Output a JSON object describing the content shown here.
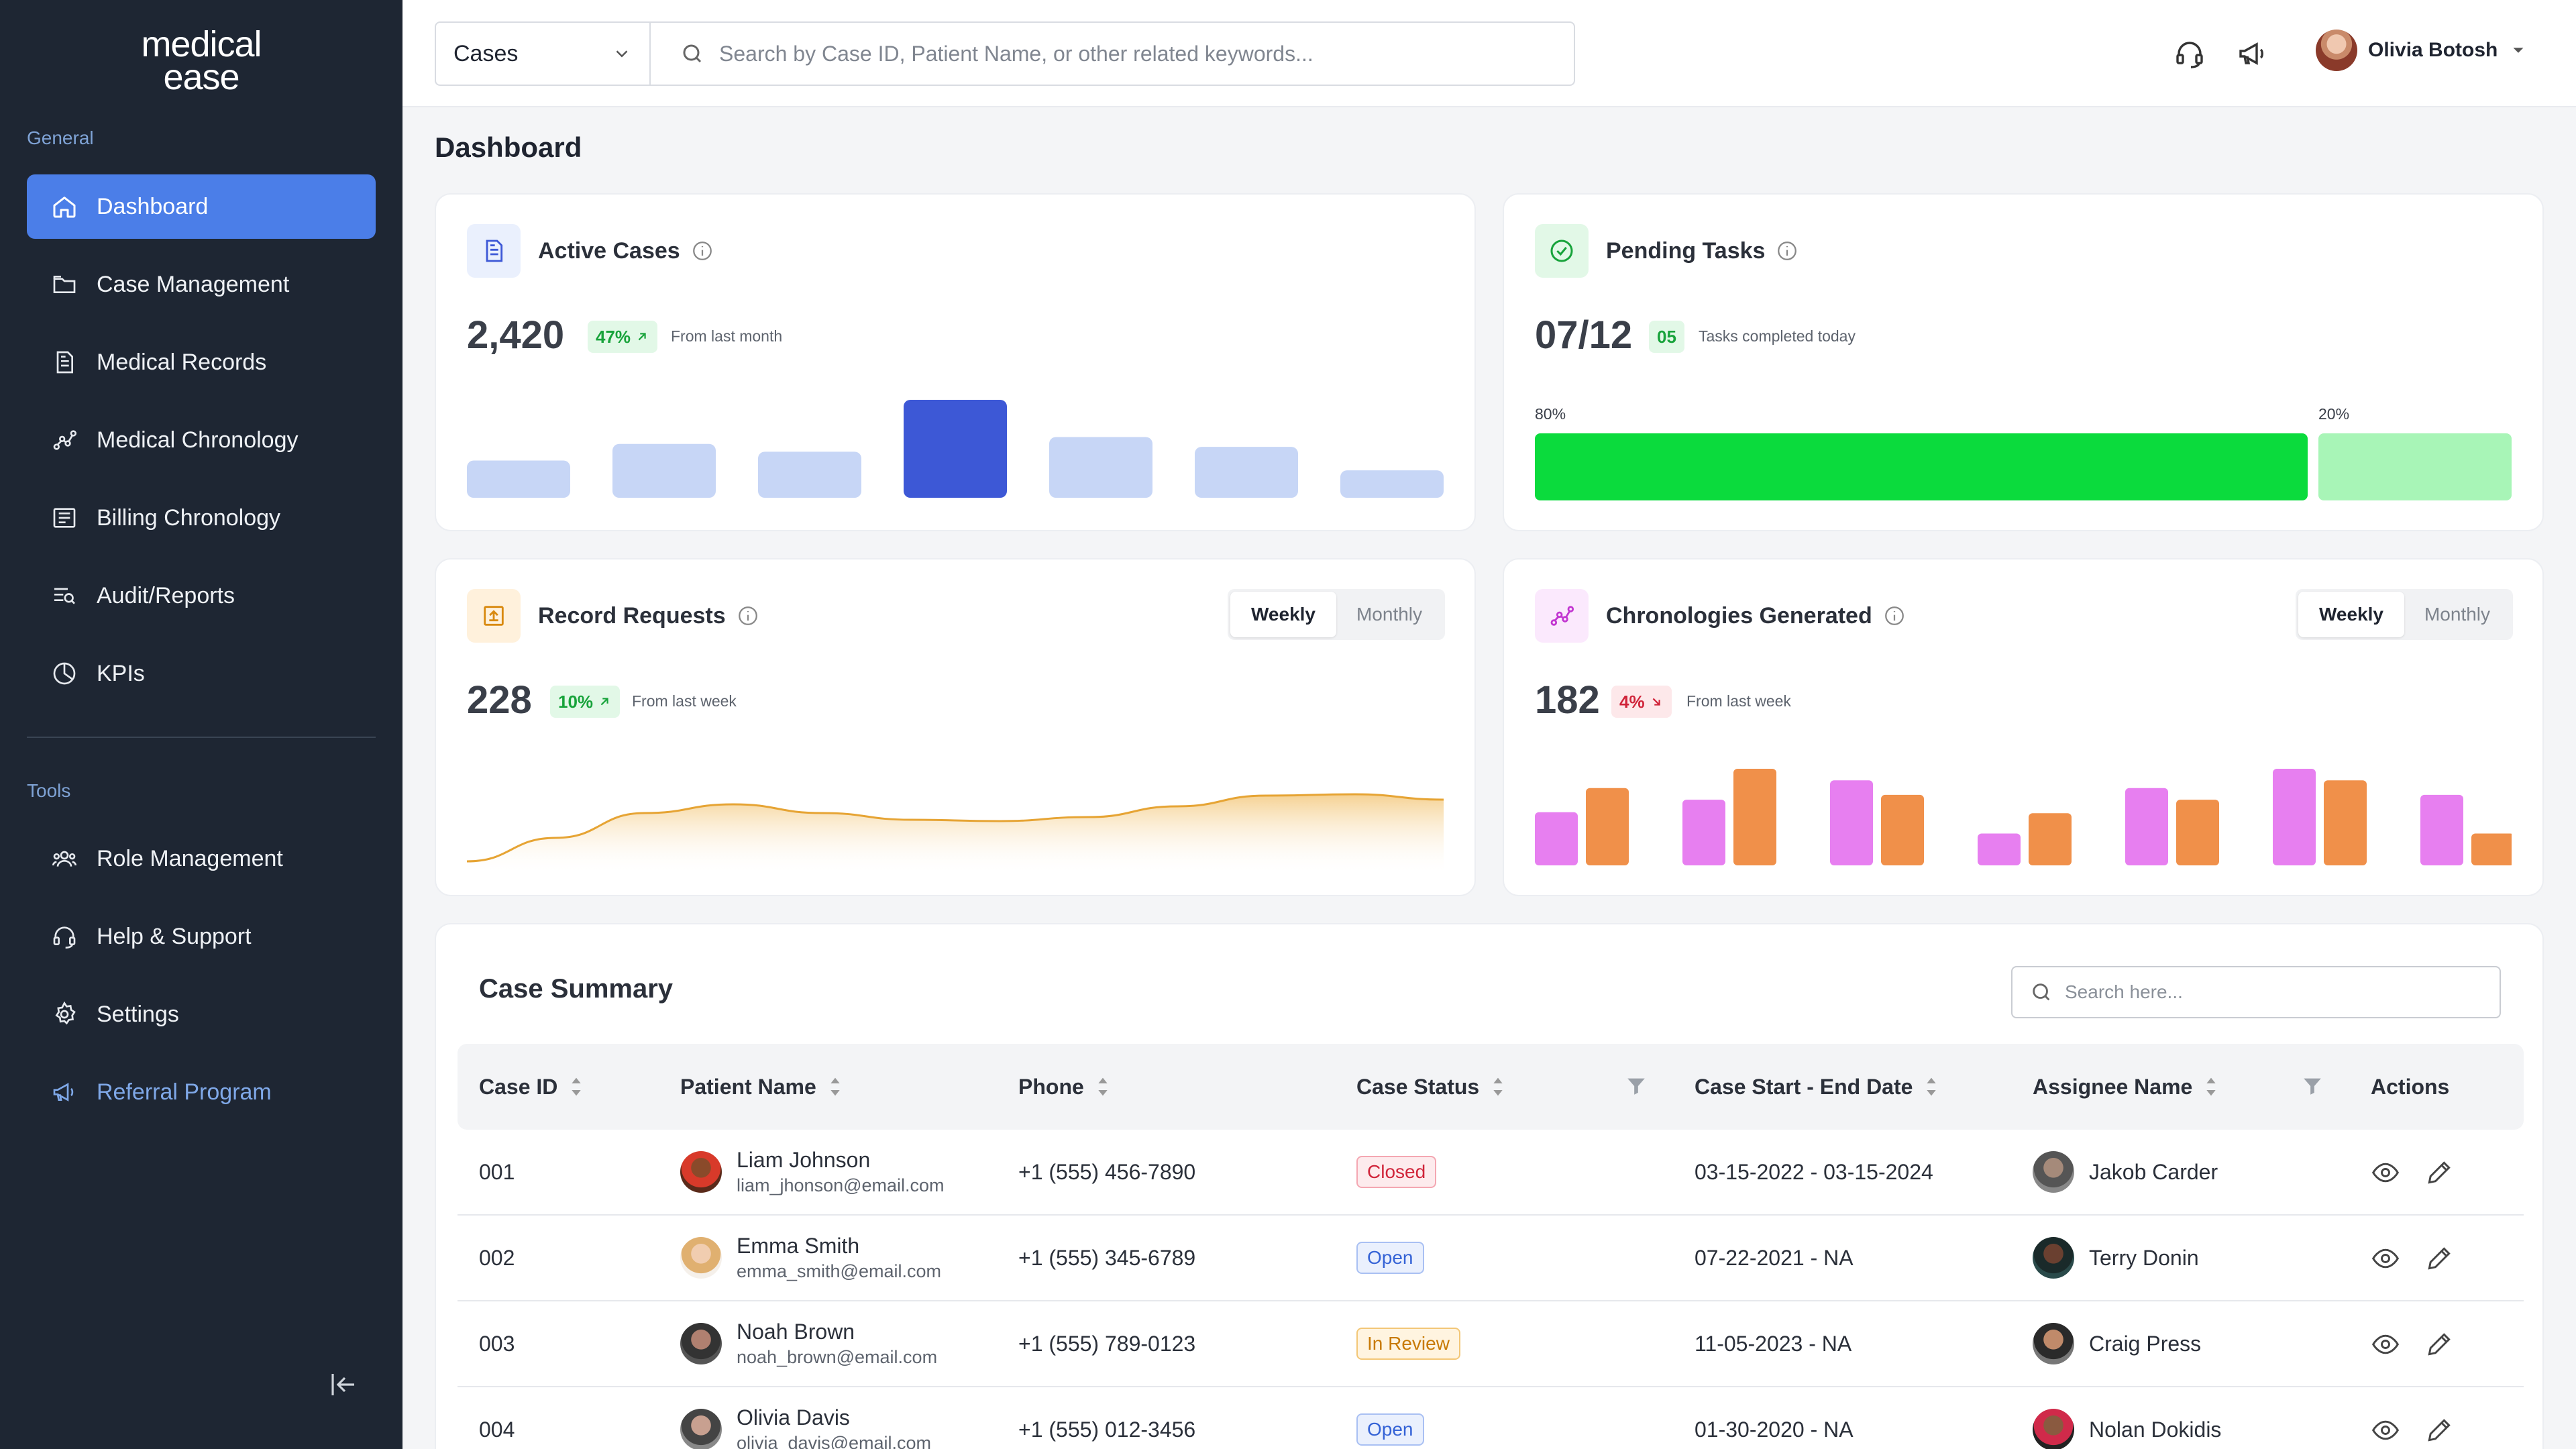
{
  "brand": {
    "line1": "medical",
    "line2": "ease"
  },
  "sidebar": {
    "general_label": "General",
    "tools_label": "Tools",
    "items": [
      {
        "label": "Dashboard",
        "icon": "home-icon"
      },
      {
        "label": "Case Management",
        "icon": "folder-icon"
      },
      {
        "label": "Medical Records",
        "icon": "document-icon"
      },
      {
        "label": "Medical Chronology",
        "icon": "chronology-icon"
      },
      {
        "label": "Billing Chronology",
        "icon": "billing-icon"
      },
      {
        "label": "Audit/Reports",
        "icon": "report-icon"
      },
      {
        "label": "KPIs",
        "icon": "pie-chart-icon"
      }
    ],
    "tools": [
      {
        "label": "Role Management",
        "icon": "users-icon"
      },
      {
        "label": "Help & Support",
        "icon": "headset-icon"
      },
      {
        "label": "Settings",
        "icon": "gear-icon"
      },
      {
        "label": "Referral Program",
        "icon": "megaphone-icon"
      }
    ]
  },
  "topbar": {
    "select_value": "Cases",
    "search_placeholder": "Search by Case ID, Patient Name, or other related keywords...",
    "user_name": "Olivia Botosh"
  },
  "page_title": "Dashboard",
  "cards": {
    "active_cases": {
      "title": "Active Cases",
      "value": "2,420",
      "change": "47%",
      "note": "From last month",
      "bars": [
        0.38,
        0.55,
        0.47,
        1.0,
        0.62,
        0.52,
        0.28
      ],
      "highlight_index": 3
    },
    "pending_tasks": {
      "title": "Pending Tasks",
      "value": "07/12",
      "badge": "05",
      "note": "Tasks completed today",
      "left_pct_label": "80%",
      "right_pct_label": "20%",
      "left_fraction": 0.8
    },
    "record_requests": {
      "title": "Record Requests",
      "value": "228",
      "change": "10%",
      "note": "From last week",
      "toggle": [
        "Weekly",
        "Monthly"
      ],
      "curve": [
        0.0,
        0.35,
        0.72,
        0.85,
        0.72,
        0.62,
        0.6,
        0.66,
        0.82,
        0.98,
        1.0,
        0.92
      ]
    },
    "chronologies": {
      "title": "Chronologies Generated",
      "value": "182",
      "change": "4%",
      "note": "From last week",
      "toggle": [
        "Weekly",
        "Monthly"
      ],
      "pairs": [
        [
          0.55,
          0.8
        ],
        [
          0.68,
          1.0
        ],
        [
          0.88,
          0.73
        ],
        [
          0.33,
          0.54
        ],
        [
          0.8,
          0.68
        ],
        [
          1.0,
          0.88
        ],
        [
          0.73,
          0.33
        ]
      ]
    }
  },
  "colors": {
    "accent": "#4b7ee8",
    "bar_light": "#c7d6f6",
    "bar_dark": "#3d58d6",
    "progress_green": "#0bdb3d",
    "progress_light": "#a8f5b7",
    "curve": "#e6a434",
    "pink": "#e77ff0",
    "orange": "#f0904a"
  },
  "table": {
    "title": "Case Summary",
    "search_placeholder": "Search here...",
    "headers": [
      "Case ID",
      "Patient Name",
      "Phone",
      "Case Status",
      "Case Start - End Date",
      "Assignee Name",
      "Actions"
    ],
    "rows": [
      {
        "id": "001",
        "name": "Liam Johnson",
        "email": "liam_jhonson@email.com",
        "phone": "+1 (555) 456-7890",
        "status": "Closed",
        "dates": "03-15-2022 - 03-15-2024",
        "assignee": "Jakob Carder"
      },
      {
        "id": "002",
        "name": "Emma Smith",
        "email": "emma_smith@email.com",
        "phone": "+1 (555) 345-6789",
        "status": "Open",
        "dates": "07-22-2021 - NA",
        "assignee": "Terry Donin"
      },
      {
        "id": "003",
        "name": "Noah Brown",
        "email": "noah_brown@email.com",
        "phone": "+1 (555) 789-0123",
        "status": "In Review",
        "dates": "11-05-2023 - NA",
        "assignee": "Craig Press"
      },
      {
        "id": "004",
        "name": "Olivia Davis",
        "email": "olivia_davis@email.com",
        "phone": "+1 (555) 012-3456",
        "status": "Open",
        "dates": "01-30-2020 - NA",
        "assignee": "Nolan Dokidis"
      }
    ]
  }
}
